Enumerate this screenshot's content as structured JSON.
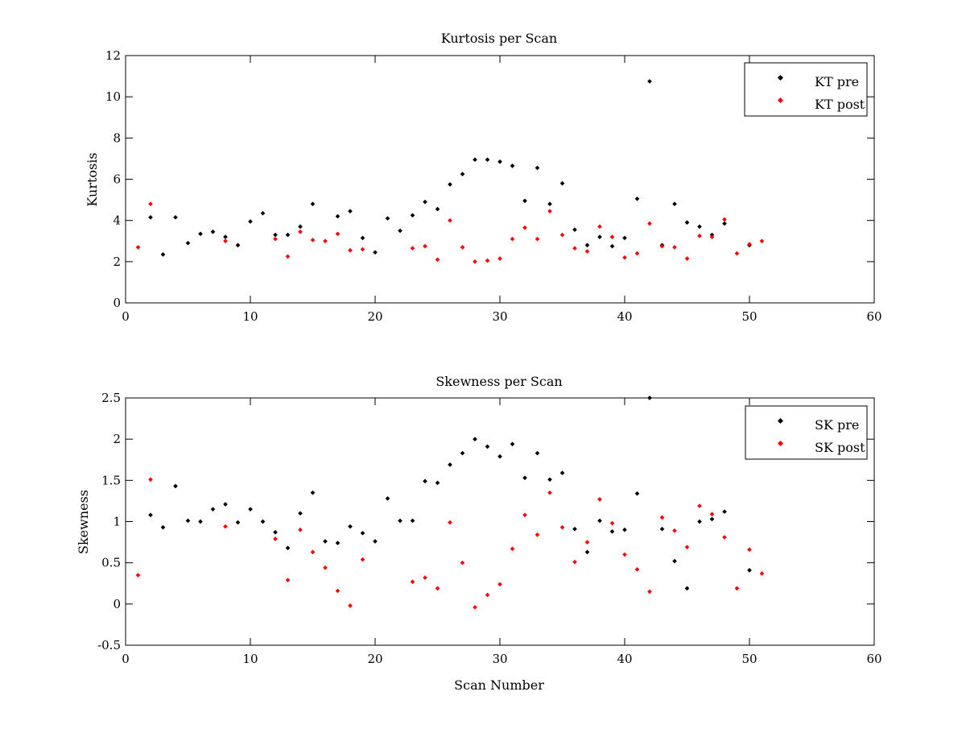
{
  "chart_data": [
    {
      "type": "scatter",
      "title": "Kurtosis per Scan",
      "xlabel": "",
      "ylabel": "Kurtosis",
      "xlim": [
        0,
        60
      ],
      "ylim": [
        0,
        12
      ],
      "xticks": [
        0,
        10,
        20,
        30,
        40,
        50,
        60
      ],
      "yticks": [
        0,
        2,
        4,
        6,
        8,
        10,
        12
      ],
      "xtick_labels": [
        "0",
        "10",
        "20",
        "30",
        "40",
        "50",
        "60"
      ],
      "ytick_labels": [
        "0",
        "2",
        "4",
        "6",
        "8",
        "10",
        "12"
      ],
      "grid": false,
      "legend_position": "top-right",
      "series": [
        {
          "name": "KT pre",
          "color": "#000000",
          "x": [
            2,
            3,
            4,
            5,
            6,
            7,
            8,
            9,
            10,
            11,
            12,
            13,
            14,
            15,
            17,
            18,
            19,
            20,
            21,
            22,
            23,
            24,
            25,
            26,
            27,
            28,
            29,
            30,
            31,
            32,
            33,
            34,
            35,
            36,
            37,
            38,
            39,
            40,
            41,
            42,
            43,
            44,
            45,
            46,
            47,
            48,
            50
          ],
          "y": [
            4.15,
            2.35,
            4.15,
            2.9,
            3.35,
            3.45,
            3.2,
            2.8,
            3.95,
            4.35,
            3.3,
            3.3,
            3.7,
            4.8,
            4.2,
            4.45,
            3.15,
            2.45,
            4.1,
            3.5,
            4.25,
            4.9,
            4.55,
            5.75,
            6.25,
            6.95,
            6.95,
            6.85,
            6.65,
            4.95,
            6.55,
            4.8,
            5.8,
            3.55,
            2.8,
            3.2,
            2.75,
            3.15,
            5.05,
            10.75,
            2.8,
            4.8,
            3.9,
            3.7,
            3.3,
            3.85,
            2.8
          ]
        },
        {
          "name": "KT post",
          "color": "#ff0000",
          "x": [
            1,
            2,
            8,
            12,
            13,
            14,
            15,
            16,
            17,
            18,
            19,
            23,
            24,
            25,
            26,
            27,
            28,
            29,
            30,
            31,
            32,
            33,
            34,
            35,
            36,
            37,
            38,
            39,
            40,
            41,
            42,
            43,
            44,
            45,
            46,
            47,
            48,
            49,
            50,
            51
          ],
          "y": [
            2.7,
            4.8,
            3.0,
            3.1,
            2.25,
            3.45,
            3.05,
            3.0,
            3.35,
            2.55,
            2.6,
            2.65,
            2.75,
            2.1,
            4.0,
            2.7,
            2.0,
            2.05,
            2.15,
            3.1,
            3.65,
            3.1,
            4.45,
            3.3,
            2.65,
            2.5,
            3.7,
            3.2,
            2.2,
            2.4,
            3.85,
            2.75,
            2.7,
            2.15,
            3.25,
            3.2,
            4.05,
            2.4,
            2.85,
            3.0
          ]
        }
      ]
    },
    {
      "type": "scatter",
      "title": "Skewness per Scan",
      "xlabel": "Scan Number",
      "ylabel": "Skewness",
      "xlim": [
        0,
        60
      ],
      "ylim": [
        -0.5,
        2.5
      ],
      "xticks": [
        0,
        10,
        20,
        30,
        40,
        50,
        60
      ],
      "yticks": [
        -0.5,
        0,
        0.5,
        1,
        1.5,
        2,
        2.5
      ],
      "xtick_labels": [
        "0",
        "10",
        "20",
        "30",
        "40",
        "50",
        "60"
      ],
      "ytick_labels": [
        "-0.5",
        "0",
        "0.5",
        "1",
        "1.5",
        "2",
        "2.5"
      ],
      "grid": false,
      "legend_position": "top-right",
      "series": [
        {
          "name": "SK pre",
          "color": "#000000",
          "x": [
            2,
            3,
            4,
            5,
            6,
            7,
            8,
            9,
            10,
            11,
            12,
            13,
            14,
            15,
            16,
            17,
            18,
            19,
            20,
            21,
            22,
            23,
            24,
            25,
            26,
            27,
            28,
            29,
            30,
            31,
            32,
            33,
            34,
            35,
            36,
            37,
            38,
            39,
            40,
            41,
            42,
            43,
            44,
            45,
            46,
            47,
            48,
            50
          ],
          "y": [
            1.08,
            0.93,
            1.43,
            1.01,
            1.0,
            1.15,
            1.21,
            0.99,
            1.15,
            1.0,
            0.87,
            0.68,
            1.1,
            1.35,
            0.76,
            0.74,
            0.94,
            0.86,
            0.76,
            1.28,
            1.01,
            1.01,
            1.49,
            1.47,
            1.69,
            1.83,
            2.0,
            1.91,
            1.79,
            1.94,
            1.53,
            1.83,
            1.51,
            1.59,
            0.91,
            0.63,
            1.01,
            0.88,
            0.9,
            1.34,
            2.5,
            0.91,
            0.52,
            0.19,
            1.0,
            1.03,
            1.12,
            0.41
          ]
        },
        {
          "name": "SK post",
          "color": "#ff0000",
          "x": [
            1,
            2,
            8,
            12,
            13,
            14,
            15,
            16,
            17,
            18,
            19,
            23,
            24,
            25,
            26,
            27,
            28,
            29,
            30,
            31,
            32,
            33,
            34,
            35,
            36,
            37,
            38,
            39,
            40,
            41,
            42,
            43,
            44,
            45,
            46,
            47,
            48,
            49,
            50,
            51
          ],
          "y": [
            0.35,
            1.51,
            0.94,
            0.79,
            0.29,
            0.9,
            0.63,
            0.44,
            0.16,
            -0.02,
            0.54,
            0.27,
            0.32,
            0.19,
            0.99,
            0.5,
            -0.04,
            0.11,
            0.24,
            0.67,
            1.08,
            0.84,
            1.35,
            0.93,
            0.51,
            0.75,
            1.27,
            0.98,
            0.6,
            0.42,
            0.15,
            1.05,
            0.89,
            0.69,
            1.19,
            1.09,
            0.81,
            0.19,
            0.66,
            0.37
          ]
        }
      ]
    }
  ]
}
